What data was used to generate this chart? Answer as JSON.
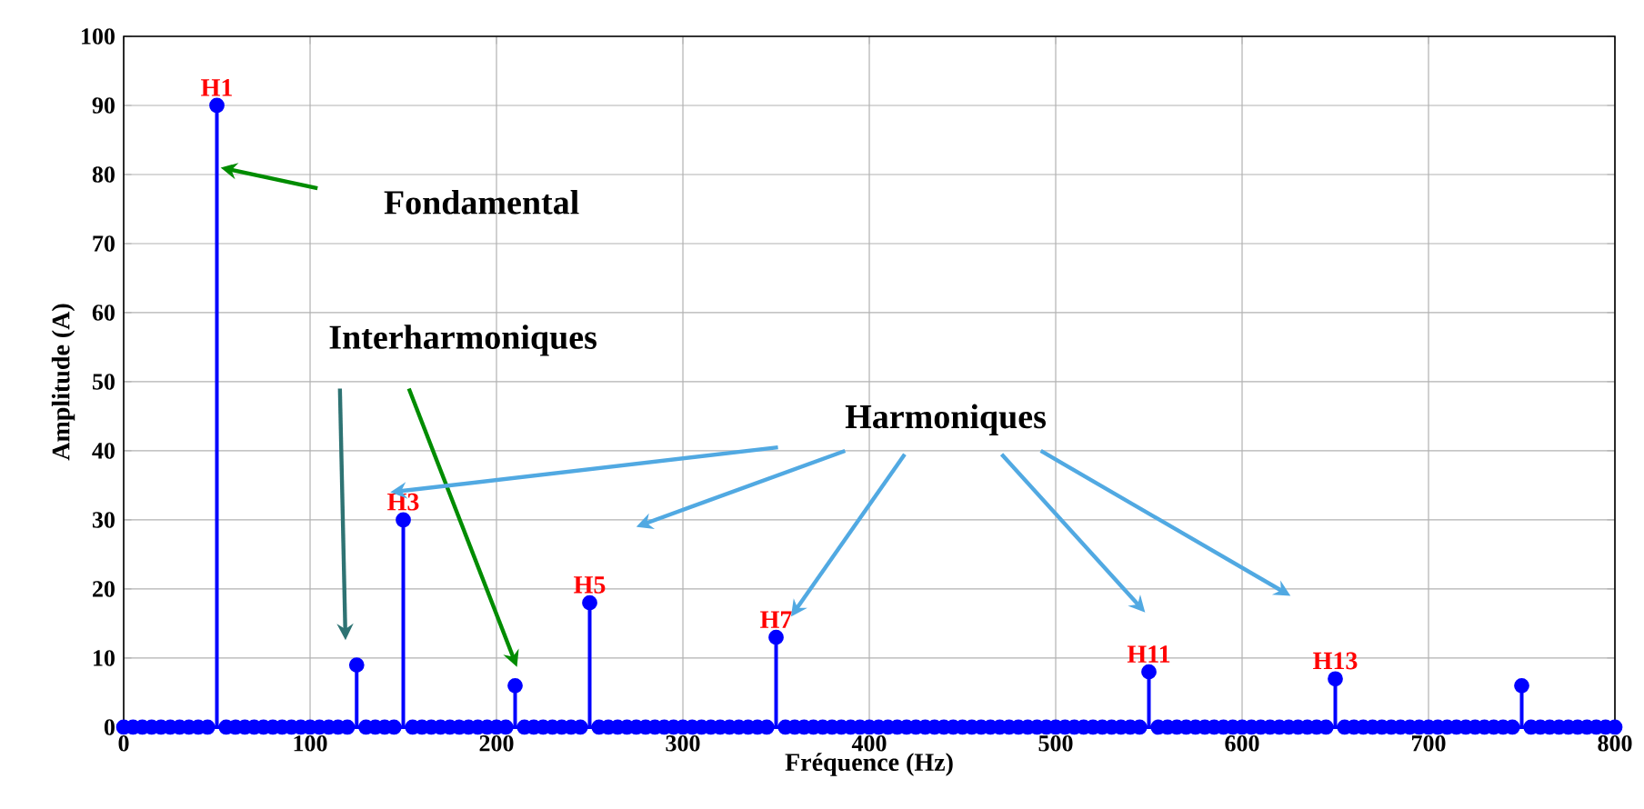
{
  "chart_data": {
    "type": "lollipop",
    "xlabel": "Fréquence (Hz)",
    "ylabel": "Amplitude (A)",
    "x": [
      0,
      5,
      10,
      15,
      20,
      25,
      30,
      35,
      40,
      45,
      50,
      55,
      60,
      65,
      70,
      75,
      80,
      85,
      90,
      95,
      100,
      105,
      110,
      115,
      120,
      125,
      130,
      135,
      140,
      145,
      150,
      155,
      160,
      165,
      170,
      175,
      180,
      185,
      190,
      195,
      200,
      205,
      210,
      215,
      220,
      225,
      230,
      235,
      240,
      245,
      250,
      255,
      260,
      265,
      270,
      275,
      280,
      285,
      290,
      295,
      300,
      305,
      310,
      315,
      320,
      325,
      330,
      335,
      340,
      345,
      350,
      355,
      360,
      365,
      370,
      375,
      380,
      385,
      390,
      395,
      400,
      405,
      410,
      415,
      420,
      425,
      430,
      435,
      440,
      445,
      450,
      455,
      460,
      465,
      470,
      475,
      480,
      485,
      490,
      495,
      500,
      505,
      510,
      515,
      520,
      525,
      530,
      535,
      540,
      545,
      550,
      555,
      560,
      565,
      570,
      575,
      580,
      585,
      590,
      595,
      600,
      605,
      610,
      615,
      620,
      625,
      630,
      635,
      640,
      645,
      650,
      655,
      660,
      665,
      670,
      675,
      680,
      685,
      690,
      695,
      700,
      705,
      710,
      715,
      720,
      725,
      730,
      735,
      740,
      745,
      750,
      755,
      760,
      765,
      770,
      775,
      780,
      785,
      790,
      795,
      800
    ],
    "values": [
      0,
      0,
      0,
      0,
      0,
      0,
      0,
      0,
      0,
      0,
      90,
      0,
      0,
      0,
      0,
      0,
      0,
      0,
      0,
      0,
      0,
      0,
      0,
      0,
      0,
      9,
      0,
      0,
      0,
      0,
      30,
      0,
      0,
      0,
      0,
      0,
      0,
      0,
      0,
      0,
      0,
      0,
      6,
      0,
      0,
      0,
      0,
      0,
      0,
      0,
      18,
      0,
      0,
      0,
      0,
      0,
      0,
      0,
      0,
      0,
      0,
      0,
      0,
      0,
      0,
      0,
      0,
      0,
      0,
      0,
      13,
      0,
      0,
      0,
      0,
      0,
      0,
      0,
      0,
      0,
      0,
      0,
      0,
      0,
      0,
      0,
      0,
      0,
      0,
      0,
      0,
      0,
      0,
      0,
      0,
      0,
      0,
      0,
      0,
      0,
      0,
      0,
      0,
      0,
      0,
      0,
      0,
      0,
      0,
      0,
      8,
      0,
      0,
      0,
      0,
      0,
      0,
      0,
      0,
      0,
      0,
      0,
      0,
      0,
      0,
      0,
      0,
      0,
      0,
      0,
      7,
      0,
      0,
      0,
      0,
      0,
      0,
      0,
      0,
      0,
      0,
      0,
      0,
      0,
      0,
      0,
      0,
      0,
      0,
      0,
      6,
      0,
      0,
      0,
      0,
      0,
      0,
      0,
      0,
      0,
      0
    ],
    "color": "#0000ff",
    "marker": "circle",
    "grid": true,
    "xlim": [
      0,
      800
    ],
    "xticks": [
      0,
      100,
      200,
      300,
      400,
      500,
      600,
      700,
      800
    ],
    "ylim": [
      0,
      100
    ],
    "yticks": [
      0,
      10,
      20,
      30,
      40,
      50,
      60,
      70,
      80,
      90,
      100
    ],
    "annotations": [
      {
        "text": "H1",
        "x": 50,
        "y": 90
      },
      {
        "text": "H3",
        "x": 150,
        "y": 30
      },
      {
        "text": "H5",
        "x": 250,
        "y": 18
      },
      {
        "text": "H7",
        "x": 350,
        "y": 13
      },
      {
        "text": "H11",
        "x": 550,
        "y": 8
      },
      {
        "text": "H13",
        "x": 650,
        "y": 7
      },
      "Fondamental",
      "Interharmoniques",
      "Harmoniques"
    ]
  }
}
